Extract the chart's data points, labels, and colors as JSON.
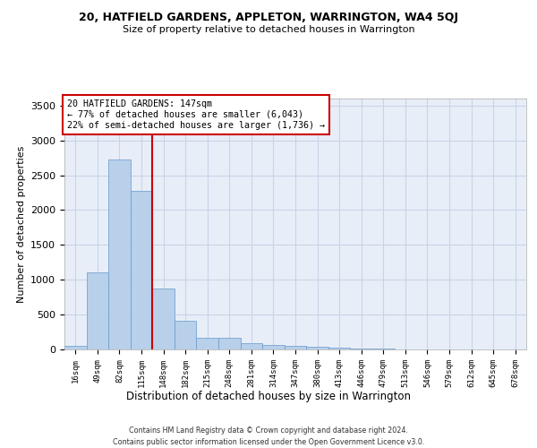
{
  "title": "20, HATFIELD GARDENS, APPLETON, WARRINGTON, WA4 5QJ",
  "subtitle": "Size of property relative to detached houses in Warrington",
  "xlabel": "Distribution of detached houses by size in Warrington",
  "ylabel": "Number of detached properties",
  "footer_line1": "Contains HM Land Registry data © Crown copyright and database right 2024.",
  "footer_line2": "Contains public sector information licensed under the Open Government Licence v3.0.",
  "categories": [
    "16sqm",
    "49sqm",
    "82sqm",
    "115sqm",
    "148sqm",
    "182sqm",
    "215sqm",
    "248sqm",
    "281sqm",
    "314sqm",
    "347sqm",
    "380sqm",
    "413sqm",
    "446sqm",
    "479sqm",
    "513sqm",
    "546sqm",
    "579sqm",
    "612sqm",
    "645sqm",
    "678sqm"
  ],
  "values": [
    50,
    1100,
    2730,
    2280,
    870,
    415,
    170,
    165,
    90,
    60,
    50,
    35,
    30,
    10,
    10,
    5,
    5,
    2,
    2,
    1,
    1
  ],
  "bar_color": "#b8d0ea",
  "bar_edge_color": "#6699cc",
  "grid_color": "#c8d4e8",
  "background_color": "#e8eef8",
  "annotation_text": "20 HATFIELD GARDENS: 147sqm\n← 77% of detached houses are smaller (6,043)\n22% of semi-detached houses are larger (1,736) →",
  "annotation_box_color": "#ffffff",
  "annotation_box_edge_color": "#cc0000",
  "vline_x": 3.5,
  "vline_color": "#cc0000",
  "ylim": [
    0,
    3600
  ],
  "yticks": [
    0,
    500,
    1000,
    1500,
    2000,
    2500,
    3000,
    3500
  ]
}
